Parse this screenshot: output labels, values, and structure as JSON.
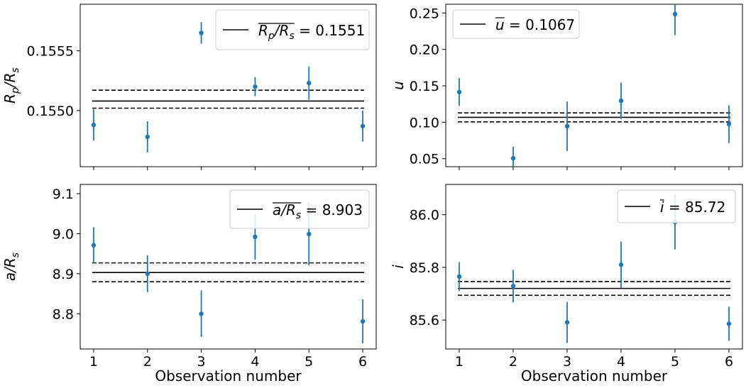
{
  "chart_data": [
    {
      "type": "scatter",
      "panel": "top-left",
      "x": [
        1,
        2,
        3,
        4,
        5,
        6
      ],
      "y": [
        0.15488,
        0.15478,
        0.15565,
        0.1552,
        0.15523,
        0.15487
      ],
      "yerr": [
        0.00013,
        0.00013,
        9e-05,
        8e-05,
        0.00014,
        0.00013
      ],
      "mean": 0.15508,
      "band": [
        0.15502,
        0.15517
      ],
      "xlabel": "",
      "ylabel_base": "R",
      "ylabel_sub": "p",
      "ylabel_denominator": "/R",
      "ylabel_sub2": "s",
      "xlim": [
        0.75,
        6.25
      ],
      "ylim": [
        0.15453,
        0.15589
      ],
      "xticks": [
        1,
        2,
        3,
        4,
        5,
        6
      ],
      "xtick_labels_visible": false,
      "yticks": [
        0.155,
        0.1555
      ],
      "ytick_labels": [
        "0.1550",
        "0.1555"
      ],
      "legend": {
        "label_lhs": "R",
        "label_lhs_sub": "p",
        "label_lhs_mid": "/R",
        "label_lhs_sub2": "s",
        "equals": " = ",
        "value": "0.1551",
        "placement": "top-right",
        "overline": true
      },
      "grid": false
    },
    {
      "type": "scatter",
      "panel": "top-right",
      "x": [
        1,
        2,
        3,
        4,
        5,
        6
      ],
      "y": [
        0.1415,
        0.0505,
        0.0945,
        0.1295,
        0.2485,
        0.0975
      ],
      "yerr": [
        0.019,
        0.016,
        0.034,
        0.025,
        0.029,
        0.026
      ],
      "mean": 0.1067,
      "band": [
        0.1005,
        0.1128
      ],
      "xlabel": "",
      "ylabel_base": "u",
      "xlim": [
        0.75,
        6.25
      ],
      "ylim": [
        0.039,
        0.262
      ],
      "xticks": [
        1,
        2,
        3,
        4,
        5,
        6
      ],
      "xtick_labels_visible": false,
      "yticks": [
        0.05,
        0.1,
        0.15,
        0.2,
        0.25
      ],
      "ytick_labels": [
        "0.05",
        "0.10",
        "0.15",
        "0.20",
        "0.25"
      ],
      "legend": {
        "label_lhs": "u",
        "equals": " = ",
        "value": "0.1067",
        "placement": "top-left",
        "overline": true
      },
      "grid": false
    },
    {
      "type": "scatter",
      "panel": "bottom-left",
      "x": [
        1,
        2,
        3,
        4,
        5,
        6
      ],
      "y": [
        8.971,
        8.9,
        8.8,
        8.992,
        8.999,
        8.781
      ],
      "yerr": [
        0.045,
        0.046,
        0.058,
        0.057,
        0.078,
        0.055
      ],
      "mean": 8.903,
      "band": [
        8.88,
        8.927
      ],
      "xlabel": "Observation number",
      "ylabel_base": "a",
      "ylabel_denominator": "/R",
      "ylabel_sub2": "s",
      "xlim": [
        0.75,
        6.25
      ],
      "ylim": [
        8.712,
        9.123
      ],
      "xticks": [
        1,
        2,
        3,
        4,
        5,
        6
      ],
      "xtick_labels": [
        "1",
        "2",
        "3",
        "4",
        "5",
        "6"
      ],
      "xtick_labels_visible": true,
      "yticks": [
        8.8,
        8.9,
        9.0,
        9.1
      ],
      "ytick_labels": [
        "8.8",
        "8.9",
        "9.0",
        "9.1"
      ],
      "legend": {
        "label_lhs": "a",
        "label_lhs_mid": "/R",
        "label_lhs_sub2": "s",
        "equals": " = ",
        "value": "8.903",
        "placement": "top-right",
        "overline": true
      },
      "grid": false
    },
    {
      "type": "scatter",
      "panel": "bottom-right",
      "x": [
        1,
        2,
        3,
        4,
        5,
        6
      ],
      "y": [
        85.765,
        85.729,
        85.591,
        85.81,
        85.972,
        85.586
      ],
      "yerr": [
        0.055,
        0.062,
        0.078,
        0.088,
        0.104,
        0.065
      ],
      "mean": 85.72,
      "band": [
        85.694,
        85.746
      ],
      "xlabel": "Observation number",
      "ylabel_base": "i",
      "xlim": [
        0.75,
        6.25
      ],
      "ylim": [
        85.49,
        86.115
      ],
      "xticks": [
        1,
        2,
        3,
        4,
        5,
        6
      ],
      "xtick_labels": [
        "1",
        "2",
        "3",
        "4",
        "5",
        "6"
      ],
      "xtick_labels_visible": true,
      "yticks": [
        85.6,
        85.8,
        86.0
      ],
      "ytick_labels": [
        "85.6",
        "85.8",
        "86.0"
      ],
      "legend": {
        "label_lhs": "i",
        "equals": " = ",
        "value": "85.72",
        "placement": "top-right",
        "overline": true
      },
      "grid": false
    }
  ],
  "colors": {
    "points": "#1f77b4",
    "lines": "#000000"
  }
}
